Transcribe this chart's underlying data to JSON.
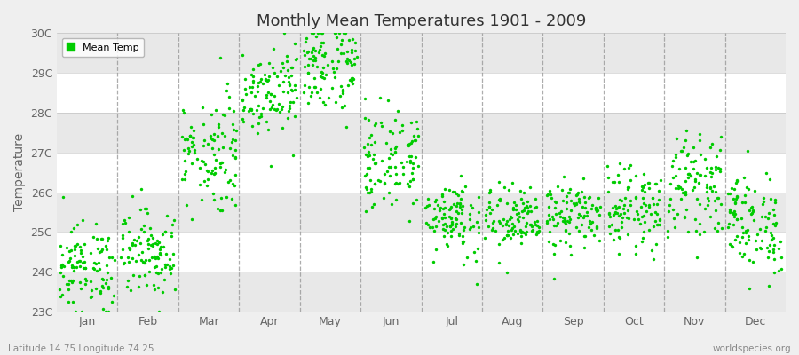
{
  "title": "Monthly Mean Temperatures 1901 - 2009",
  "ylabel": "Temperature",
  "bottom_left_text": "Latitude 14.75 Longitude 74.25",
  "bottom_right_text": "worldspecies.org",
  "ylim": [
    23,
    30
  ],
  "yticks": [
    23,
    24,
    25,
    26,
    27,
    28,
    29,
    30
  ],
  "ytick_labels": [
    "23C",
    "24C",
    "25C",
    "26C",
    "27C",
    "28C",
    "29C",
    "30C"
  ],
  "months": [
    "Jan",
    "Feb",
    "Mar",
    "Apr",
    "May",
    "Jun",
    "Jul",
    "Aug",
    "Sep",
    "Oct",
    "Nov",
    "Dec"
  ],
  "dot_color": "#00CC00",
  "dot_size": 6,
  "background_color": "#EFEFEF",
  "plot_bg_alt1": "#FFFFFF",
  "plot_bg_alt2": "#E8E8E8",
  "grid_color": "#999999",
  "legend_label": "Mean Temp",
  "n_years": 109,
  "monthly_means": [
    24.1,
    24.5,
    27.0,
    28.6,
    29.2,
    26.8,
    25.4,
    25.3,
    25.4,
    25.6,
    26.2,
    25.2
  ],
  "monthly_stds": [
    0.55,
    0.55,
    0.75,
    0.55,
    0.6,
    0.65,
    0.5,
    0.42,
    0.42,
    0.5,
    0.6,
    0.65
  ]
}
